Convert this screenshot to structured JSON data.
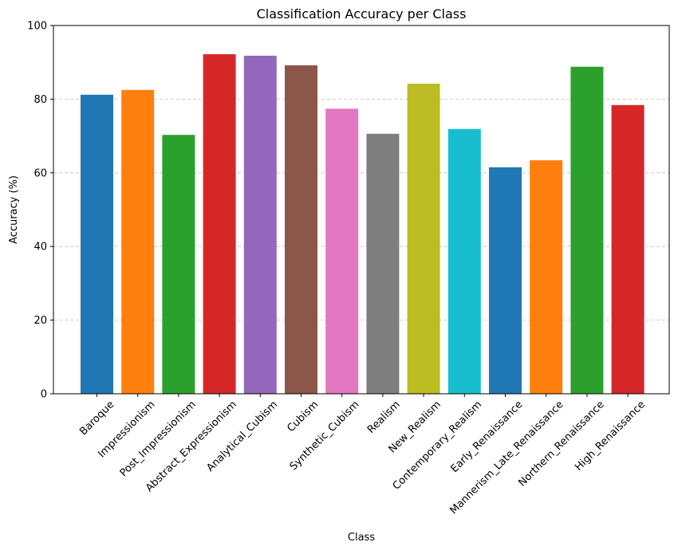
{
  "chart_data": {
    "type": "bar",
    "title": "Classification Accuracy per Class",
    "xlabel": "Class",
    "ylabel": "Accuracy (%)",
    "ylim": [
      0,
      100
    ],
    "yticks": [
      0,
      20,
      40,
      60,
      80,
      100
    ],
    "grid": "y-axis dashed",
    "categories": [
      "Baroque",
      "Impressionism",
      "Post_Impressionism",
      "Abstract_Expressionism",
      "Analytical_Cubism",
      "Cubism",
      "Synthetic_Cubism",
      "Realism",
      "New_Realism",
      "Contemporary_Realism",
      "Early_Renaissance",
      "Mannerism_Late_Renaissance",
      "Northern_Renaissance",
      "High_Renaissance"
    ],
    "values": [
      81.2,
      82.5,
      70.3,
      92.2,
      91.8,
      89.2,
      77.4,
      70.6,
      84.2,
      71.9,
      61.5,
      63.4,
      88.8,
      78.4
    ],
    "colors": [
      "#1f77b4",
      "#ff7f0e",
      "#2ca02c",
      "#d62728",
      "#9467bd",
      "#8c564b",
      "#e377c2",
      "#7f7f7f",
      "#bcbd22",
      "#17becf",
      "#1f77b4",
      "#ff7f0e",
      "#2ca02c",
      "#d62728"
    ]
  }
}
